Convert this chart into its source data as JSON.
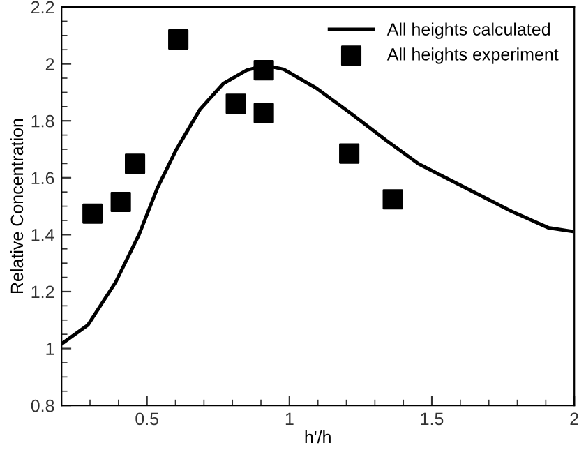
{
  "chart_data": {
    "type": "line",
    "xlabel": "h'/h",
    "ylabel": "Relative Concentration",
    "xlim": [
      0.2,
      2
    ],
    "ylim": [
      0.8,
      2.2
    ],
    "xticks": [
      0.5,
      1,
      1.5,
      2
    ],
    "yticks": [
      0.8,
      1,
      1.2,
      1.4,
      1.6,
      1.8,
      2,
      2.2
    ],
    "grid": false,
    "legend": "top right",
    "series": [
      {
        "name": "All heights calculated",
        "color": "#000000",
        "line_style": "solid",
        "marker": "none",
        "x": [
          0.2,
          0.293,
          0.39,
          0.472,
          0.537,
          0.603,
          0.686,
          0.768,
          0.85,
          0.915,
          0.98,
          1.094,
          1.208,
          1.339,
          1.453,
          1.617,
          1.78,
          1.91,
          1.99
        ],
        "values": [
          1.016,
          1.083,
          1.233,
          1.4,
          1.565,
          1.699,
          1.84,
          1.931,
          1.978,
          1.995,
          1.981,
          1.915,
          1.832,
          1.732,
          1.649,
          1.565,
          1.482,
          1.424,
          1.412
        ]
      },
      {
        "name": "All heights experiment",
        "type": "scatter",
        "color": "#000000",
        "marker": "square",
        "x": [
          0.309,
          0.408,
          0.458,
          0.61,
          0.812,
          0.91,
          0.91,
          1.21,
          1.363
        ],
        "values": [
          1.474,
          1.515,
          1.649,
          2.086,
          1.86,
          1.978,
          1.827,
          1.685,
          1.524
        ]
      }
    ]
  }
}
